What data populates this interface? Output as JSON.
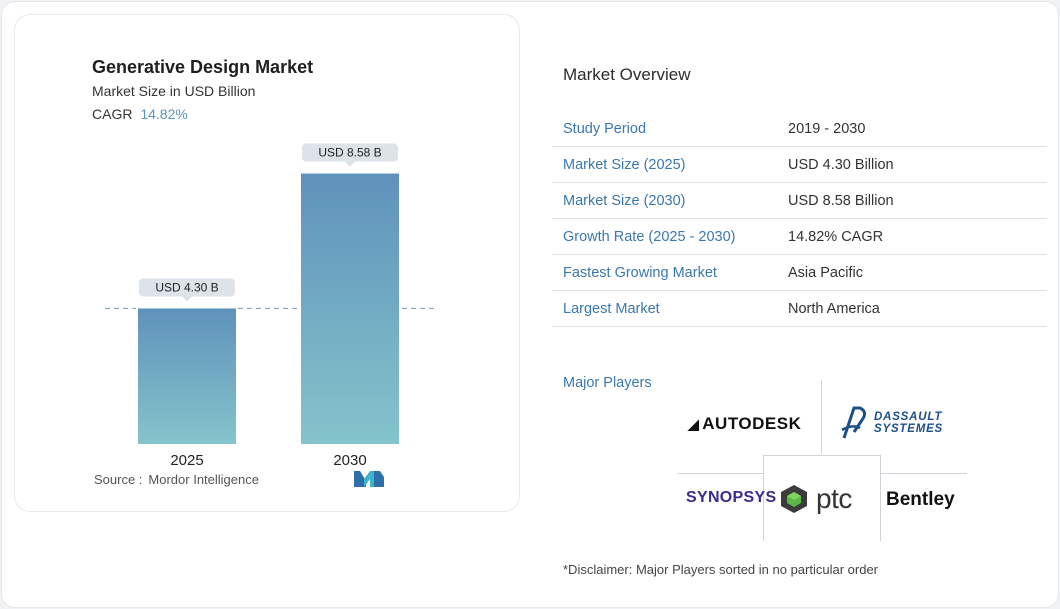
{
  "chart_data": {
    "type": "bar",
    "title": "Generative Design Market",
    "subtitle": "Market Size in USD Billion",
    "cagr_label": "CAGR",
    "cagr_value": "14.82%",
    "categories": [
      "2025",
      "2030"
    ],
    "values": [
      4.3,
      8.58
    ],
    "data_labels": [
      "USD 4.30 B",
      "USD 8.58 B"
    ],
    "xlabel": "",
    "ylabel": "",
    "ylim": [
      0,
      9.2
    ],
    "grid": false,
    "reference_line_value": 4.3,
    "colors": {
      "bar_top": "#5f92bb",
      "bar_bottom": "#84c4cb",
      "label_bg": "#dde3e8",
      "reference_line": "#7fa9c4"
    }
  },
  "source": {
    "label": "Source :",
    "value": "Mordor Intelligence"
  },
  "overview": {
    "title": "Market Overview",
    "rows": [
      {
        "label": "Study Period",
        "value": "2019 - 2030"
      },
      {
        "label": "Market Size (2025)",
        "value": "USD 4.30 Billion"
      },
      {
        "label": "Market Size (2030)",
        "value": "USD 8.58 Billion"
      },
      {
        "label": "Growth Rate (2025 - 2030)",
        "value": "14.82% CAGR"
      },
      {
        "label": "Fastest Growing Market",
        "value": "Asia Pacific"
      },
      {
        "label": "Largest Market",
        "value": "North America"
      }
    ]
  },
  "players": {
    "title": "Major Players",
    "logos": {
      "autodesk": "AUTODESK",
      "dassault_line1": "DASSAULT",
      "dassault_line2": "SYSTEMES",
      "synopsys": "SYNOPSYS",
      "ptc": "ptc",
      "bentley": "Bentley"
    }
  },
  "disclaimer": "*Disclaimer: Major Players sorted in no particular order",
  "colors": {
    "accent": "#3a78ad",
    "cagr": "#5b93c2"
  }
}
